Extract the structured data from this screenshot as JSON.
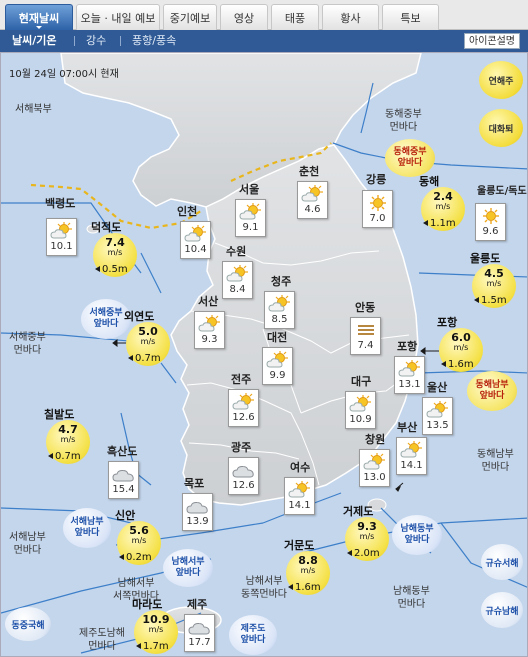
{
  "tabs": [
    {
      "label": "현재날씨",
      "active": true
    },
    {
      "label": "오늘 · 내일 예보"
    },
    {
      "label": "중기예보"
    },
    {
      "label": "영상"
    },
    {
      "label": "태풍"
    },
    {
      "label": "황사"
    },
    {
      "label": "특보"
    }
  ],
  "subnav": [
    {
      "label": "날씨/기온",
      "active": true
    },
    {
      "label": "강수"
    },
    {
      "label": "풍향/풍속"
    }
  ],
  "legend_button": "아이콘설명",
  "timestamp": "10월 24일 07:00시 현재",
  "right_buttons": [
    "연해주",
    "대화퇴",
    "규슈서해",
    "규슈남해"
  ],
  "bottom_left_button": "동중국해",
  "sea_labels": [
    "서해북부",
    "동해중부\n먼바다",
    "서해중부\n먼바다",
    "동해남부\n먼바다",
    "서해남부\n먼바다",
    "남해서부\n서쪽먼바다",
    "남해동부\n먼바다",
    "남해서부\n동쪽먼바다",
    "제주도남해\n먼바다"
  ],
  "cities": [
    {
      "name": "백령도",
      "temp": "10.1",
      "icon": "partly-cloudy-icon"
    },
    {
      "name": "인천",
      "temp": "10.4",
      "icon": "partly-cloudy-icon"
    },
    {
      "name": "서울",
      "temp": "9.1",
      "icon": "partly-cloudy-icon"
    },
    {
      "name": "춘천",
      "temp": "4.6",
      "icon": "partly-cloudy-icon"
    },
    {
      "name": "강릉",
      "temp": "7.0",
      "icon": "sunny-icon"
    },
    {
      "name": "울릉도/독도",
      "temp": "9.6",
      "icon": "sunny-icon"
    },
    {
      "name": "수원",
      "temp": "8.4",
      "icon": "partly-cloudy-icon"
    },
    {
      "name": "청주",
      "temp": "8.5",
      "icon": "partly-cloudy-icon"
    },
    {
      "name": "서산",
      "temp": "9.3",
      "icon": "partly-cloudy-icon"
    },
    {
      "name": "대전",
      "temp": "9.9",
      "icon": "partly-cloudy-icon"
    },
    {
      "name": "안동",
      "temp": "7.4",
      "icon": "fog-icon"
    },
    {
      "name": "포항",
      "temp": "13.1",
      "icon": "partly-cloudy-icon"
    },
    {
      "name": "전주",
      "temp": "12.6",
      "icon": "partly-cloudy-icon"
    },
    {
      "name": "대구",
      "temp": "10.9",
      "icon": "partly-cloudy-icon"
    },
    {
      "name": "울산",
      "temp": "13.5",
      "icon": "partly-cloudy-icon"
    },
    {
      "name": "광주",
      "temp": "12.6",
      "icon": "cloudy-icon"
    },
    {
      "name": "창원",
      "temp": "13.0",
      "icon": "partly-cloudy-icon"
    },
    {
      "name": "부산",
      "temp": "14.1",
      "icon": "partly-cloudy-icon"
    },
    {
      "name": "흑산도",
      "temp": "15.4",
      "icon": "cloudy-icon"
    },
    {
      "name": "목포",
      "temp": "13.9",
      "icon": "cloudy-icon"
    },
    {
      "name": "여수",
      "temp": "14.1",
      "icon": "partly-cloudy-icon"
    },
    {
      "name": "제주",
      "temp": "17.7",
      "icon": "cloudy-icon"
    }
  ],
  "buoys": [
    {
      "name": "덕적도",
      "wind": "7.4",
      "wind_unit": "m/s",
      "wave": "0.5m"
    },
    {
      "name": "동해",
      "wind": "2.4",
      "wind_unit": "m/s",
      "wave": "1.1m"
    },
    {
      "name": "울릉도",
      "wind": "4.5",
      "wind_unit": "m/s",
      "wave": "1.5m"
    },
    {
      "name": "외연도",
      "wind": "5.0",
      "wind_unit": "m/s",
      "wave": "0.7m"
    },
    {
      "name": "포항",
      "wind": "6.0",
      "wind_unit": "m/s",
      "wave": "1.6m"
    },
    {
      "name": "칠발도",
      "wind": "4.7",
      "wind_unit": "m/s",
      "wave": "0.7m"
    },
    {
      "name": "신안",
      "wind": "5.6",
      "wind_unit": "m/s",
      "wave": "0.2m"
    },
    {
      "name": "거제도",
      "wind": "9.3",
      "wind_unit": "m/s",
      "wave": "2.0m"
    },
    {
      "name": "거문도",
      "wind": "8.8",
      "wind_unit": "m/s",
      "wave": "1.6m"
    },
    {
      "name": "마라도",
      "wind": "10.9",
      "wind_unit": "m/s",
      "wave": "1.7m"
    }
  ],
  "warning_zones": [
    {
      "label": "동해중부\n앞바다",
      "level": "advisory"
    },
    {
      "label": "서해중부\n앞바다",
      "level": "normal"
    },
    {
      "label": "동해남부\n앞바다",
      "level": "advisory"
    },
    {
      "label": "서해남부\n앞바다",
      "level": "normal"
    },
    {
      "label": "남해서부\n앞바다",
      "level": "normal"
    },
    {
      "label": "남해동부\n앞바다",
      "level": "normal"
    },
    {
      "label": "제주도\n앞바다",
      "level": "normal"
    }
  ],
  "colors": {
    "sea": "#c4d6ec",
    "land": "#d7d9dc",
    "buoy": "#f4e043",
    "zone_normal": "#d9e4f7",
    "zone_advisory": "#f5e462"
  }
}
